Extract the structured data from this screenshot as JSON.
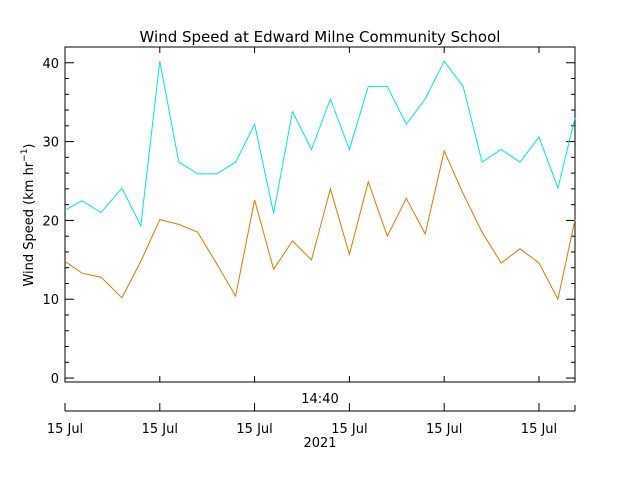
{
  "chart_data": {
    "type": "line",
    "title": "Wind Speed at Edward Milne Community School",
    "ylabel_main": "Wind Speed (km hr",
    "ylabel_sup": "−1",
    "ylabel_end": ")",
    "ylim": [
      -0.5,
      42
    ],
    "yticks": [
      0,
      10,
      20,
      30,
      40
    ],
    "time_label": "14:40",
    "year_label": "2021",
    "date_ticks": [
      {
        "t": 0,
        "label": "15 Jul"
      },
      {
        "t": 5,
        "label": "15 Jul"
      },
      {
        "t": 10,
        "label": "15 Jul"
      },
      {
        "t": 15,
        "label": "15 Jul"
      },
      {
        "t": 20,
        "label": "15 Jul"
      },
      {
        "t": 25,
        "label": "15 Jul"
      }
    ],
    "xlim": [
      0,
      26.9
    ],
    "series": [
      {
        "color": "#00e5e5",
        "x": [
          0,
          0.9,
          1.9,
          3.0,
          4.0,
          5.0,
          6.0,
          7.0,
          8.0,
          9.0,
          10.0,
          11.0,
          12.0,
          13.0,
          14.0,
          15.0,
          16.0,
          17.0,
          18.0,
          19.0,
          20.0,
          21.0,
          22.0,
          23.0,
          24.0,
          25.0,
          26.0,
          26.9
        ],
        "values": [
          21.3,
          22.5,
          21.0,
          24.1,
          19.3,
          40.2,
          27.4,
          25.9,
          25.9,
          27.4,
          32.2,
          20.9,
          33.8,
          29.0,
          35.4,
          29.0,
          37.0,
          37.0,
          32.2,
          35.4,
          40.2,
          37.0,
          27.4,
          29.0,
          27.4,
          30.6,
          24.1,
          33.0
        ]
      },
      {
        "color": "#e07800",
        "x": [
          0,
          0.9,
          1.9,
          3.0,
          4.0,
          5.0,
          6.0,
          7.0,
          8.0,
          9.0,
          10.0,
          11.0,
          12.0,
          13.0,
          14.0,
          15.0,
          16.0,
          17.0,
          18.0,
          19.0,
          20.0,
          21.0,
          22.0,
          23.0,
          24.0,
          25.0,
          26.0,
          26.9
        ],
        "values": [
          14.8,
          13.3,
          12.8,
          10.2,
          14.8,
          20.1,
          19.5,
          18.5,
          14.5,
          10.4,
          22.6,
          13.8,
          17.4,
          15.0,
          24.0,
          15.7,
          24.9,
          18.0,
          22.8,
          18.3,
          28.8,
          23.4,
          18.5,
          14.6,
          16.4,
          14.6,
          10.0,
          20.1
        ]
      }
    ]
  }
}
